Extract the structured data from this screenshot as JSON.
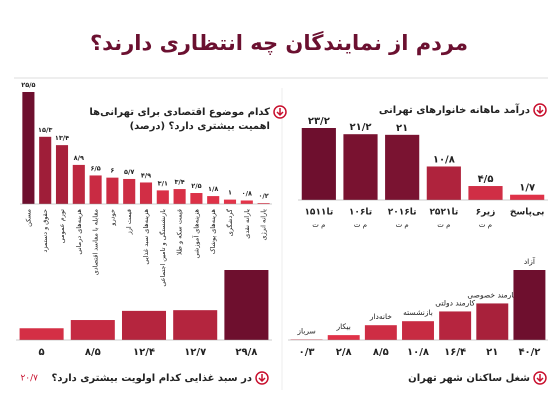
{
  "header": {
    "title": "مردم از نمایندگان چه انتظاری دارند؟",
    "page_number": "۲۰/۷"
  },
  "chart_data": [
    {
      "type": "bar",
      "title_lines": [
        "درآمد ماهانه خانوارهای تهرانی"
      ],
      "categories": [
        "۱۵تا۱۱",
        "۱۰تا۶",
        "۲۰تا۱۶",
        "۲۵تا۲۱",
        "زیر۶",
        "بی‌پاسخ"
      ],
      "category_units": [
        "م ت",
        "م ت",
        "م ت",
        "م ت",
        "م ت",
        null
      ],
      "values": [
        23.2,
        21.2,
        21,
        10.8,
        4.5,
        1.7
      ],
      "value_labels": [
        "۲۳/۲",
        "۲۱/۲",
        "۲۱",
        "۱۰/۸",
        "۴/۵",
        "۱/۷"
      ],
      "colors": [
        "#e8354a",
        "#6e0f2e"
      ]
    },
    {
      "type": "bar",
      "title_lines": [
        "کدام موضوع اقتصادی برای تهرانی‌ها",
        "اهمیت بیشتری دارد؟ (درصد)"
      ],
      "categories": [
        "مسکن",
        "حقوق و دستمزد",
        "تورم عمومی",
        "هزینه‌های درمانی",
        "مقابله با مفاسد اقتصادی",
        "خودرو",
        "قیمت ارز",
        "هزینه‌های سبد غذایی",
        "بازنشستگی و تامین اجتماعی",
        "قیمت سکه و طلا",
        "هزینه‌های آموزشی",
        "هزینه‌های پوشاک",
        "گردشگری",
        "یارانه نقدی",
        "یارانه انرژی"
      ],
      "values": [
        25.5,
        15.3,
        13.4,
        8.9,
        6.5,
        6,
        5.7,
        4.9,
        3.1,
        3.4,
        2.5,
        1.8,
        1,
        0.8,
        0.2
      ],
      "value_labels": [
        "۲۵/۵",
        "۱۵/۳",
        "۱۳/۴",
        "۸/۹",
        "۶/۵",
        "۶",
        "۵/۷",
        "۴/۹",
        "۳/۱",
        "۳/۴",
        "۲/۵",
        "۱/۸",
        "۱",
        "۰/۸",
        "۰/۲"
      ],
      "colors": [
        "#e8354a",
        "#6e0f2e"
      ]
    },
    {
      "type": "bar",
      "title_lines": [
        "شغل ساکنان شهر تهران"
      ],
      "categories": [
        "سرباز",
        "بیکار",
        "خانه‌دار",
        "بازنشسته",
        "کارمند دولتی",
        "کارمند خصوصی",
        "آزاد"
      ],
      "values": [
        0.3,
        2.8,
        8.5,
        10.8,
        16.4,
        21,
        40.2
      ],
      "value_labels": [
        "۰/۳",
        "۲/۸",
        "۸/۵",
        "۱۰/۸",
        "۱۶/۴",
        "۲۱",
        "۴۰/۲"
      ],
      "colors": [
        "#e8354a",
        "#6e0f2e"
      ]
    },
    {
      "type": "bar",
      "title_lines": [
        "در سبد غذایی کدام اولویت بیشتری دارد؟"
      ],
      "categories": [
        null,
        null,
        null,
        null,
        null
      ],
      "values": [
        5,
        8.5,
        12.4,
        12.7,
        29.8
      ],
      "value_labels": [
        "۵",
        "۸/۵",
        "۱۲/۴",
        "۱۲/۷",
        "۲۹/۸"
      ],
      "colors": [
        "#e8354a",
        "#6e0f2e"
      ]
    }
  ]
}
